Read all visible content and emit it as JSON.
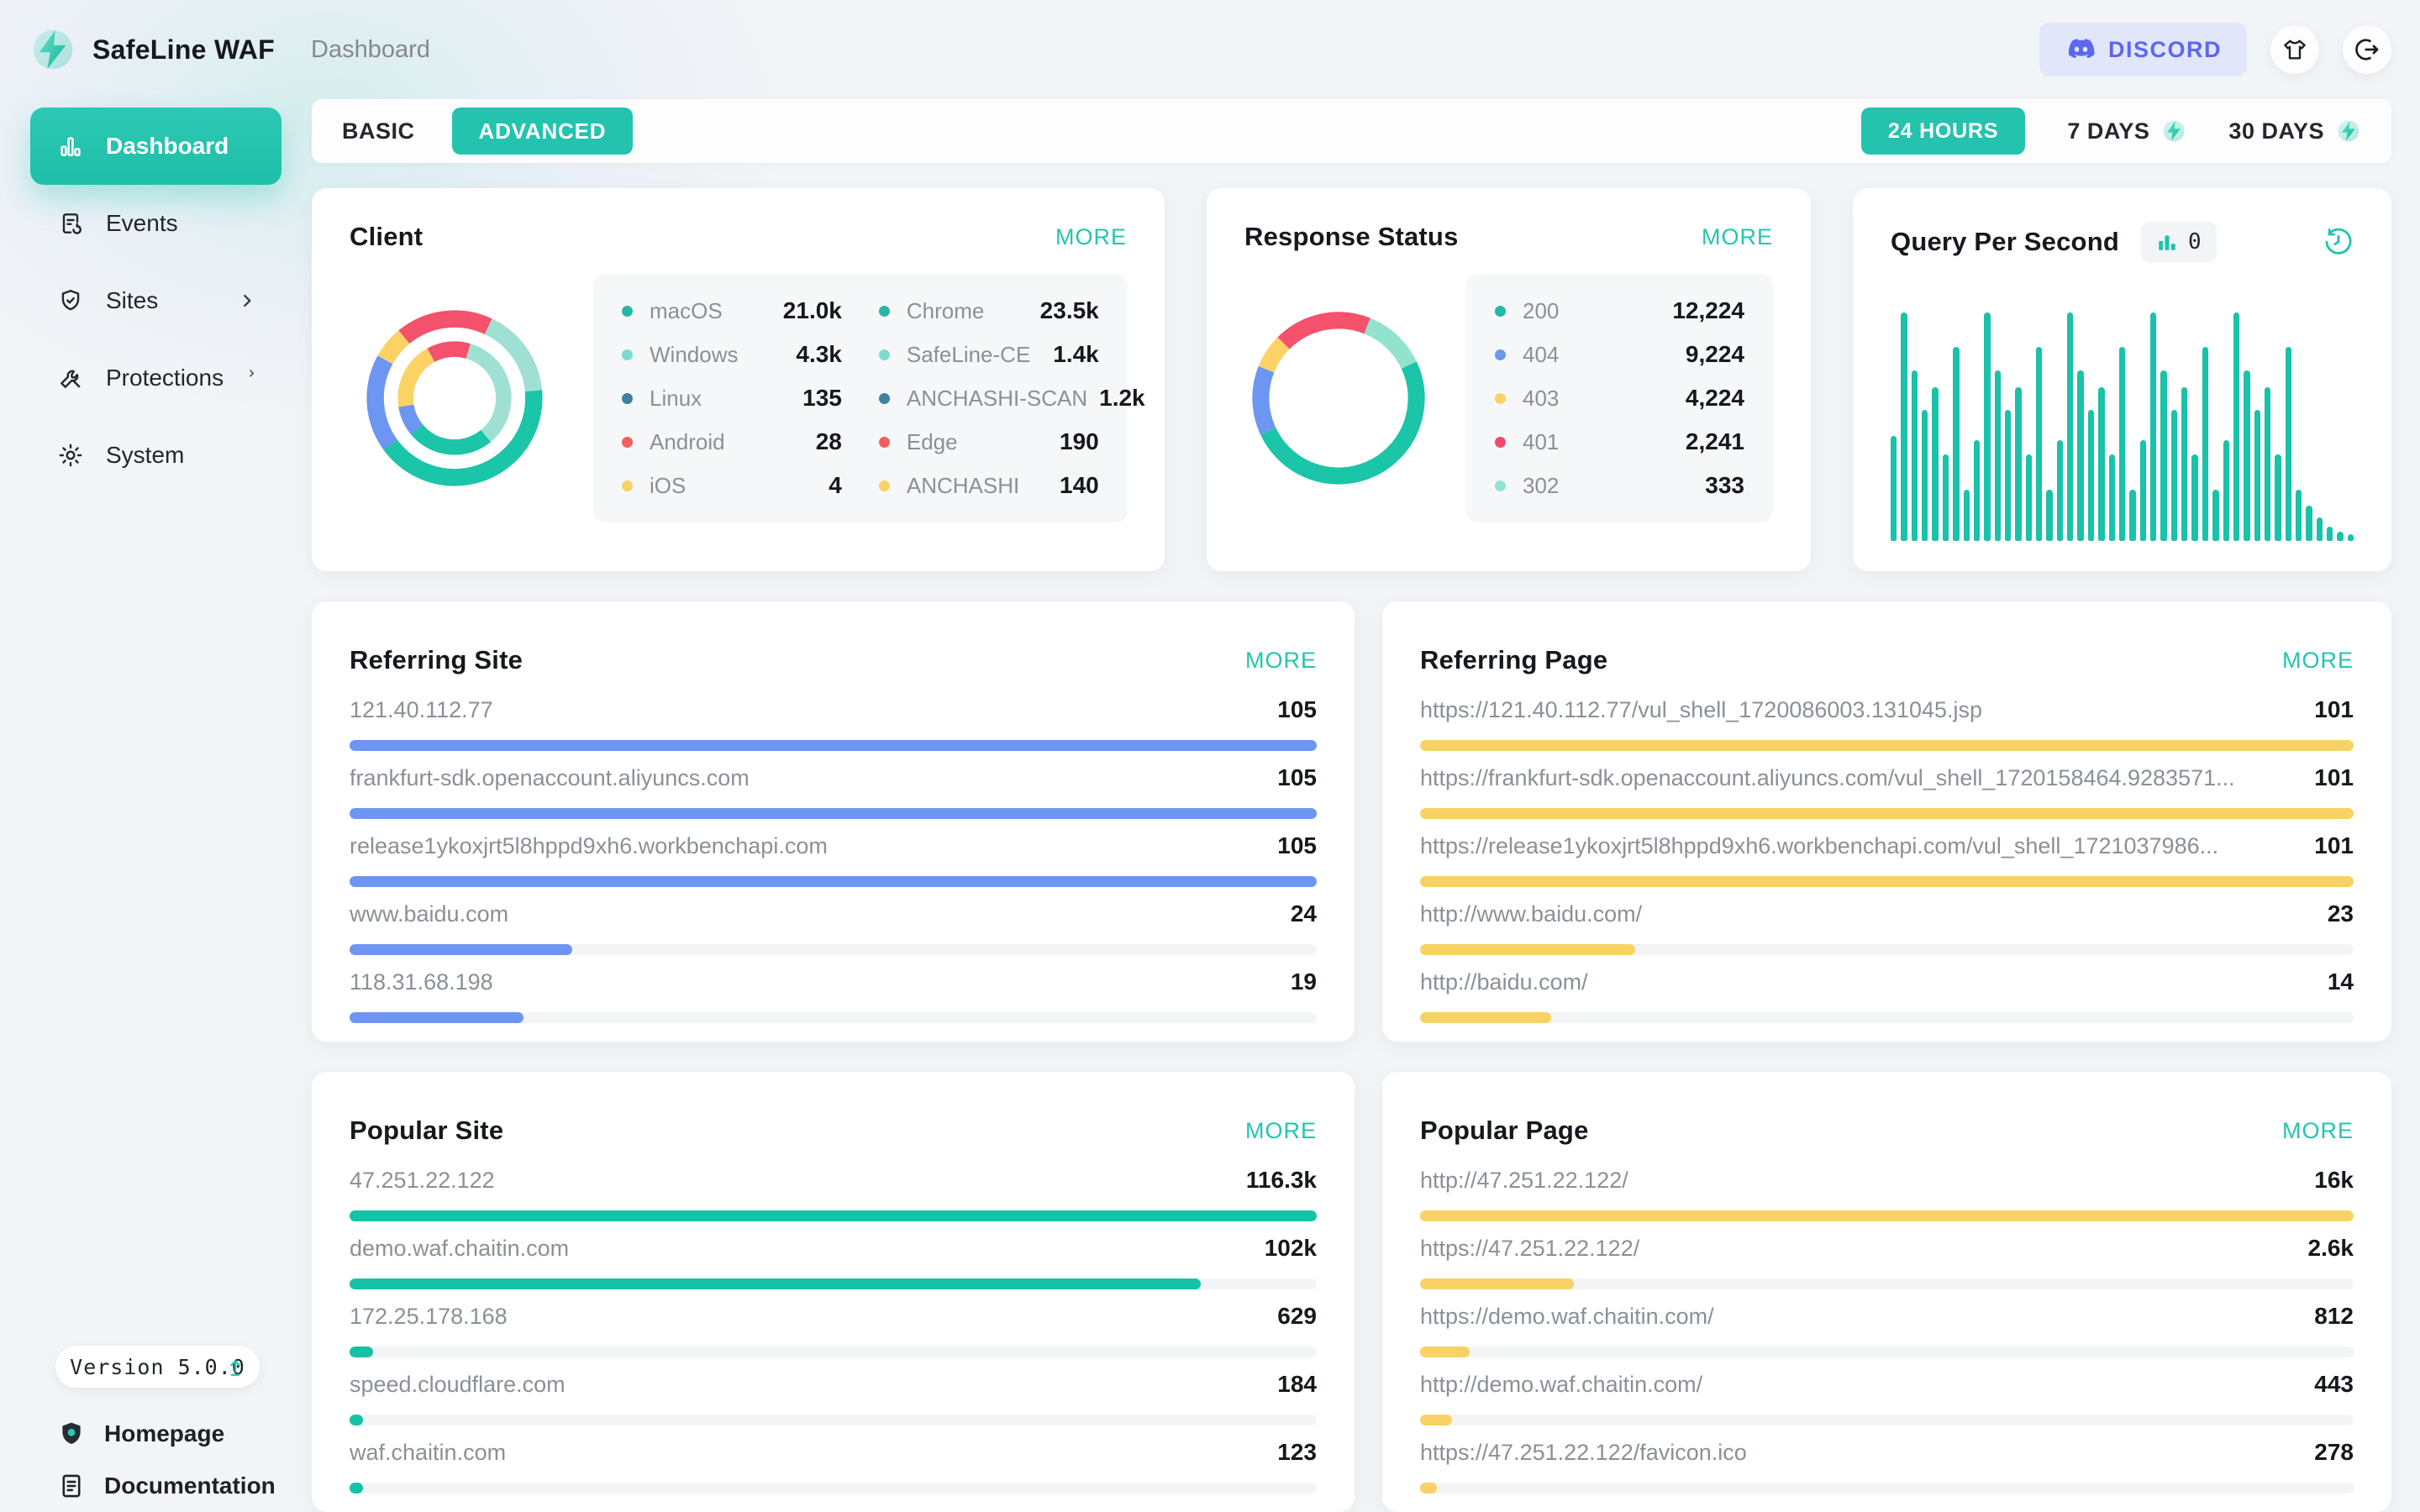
{
  "app": {
    "brand": "SafeLine WAF",
    "breadcrumb": "Dashboard"
  },
  "header": {
    "discord": "DISCORD"
  },
  "colors": {
    "accent": "#23c3ae",
    "discord": "#5b67f1",
    "bar_blue": "#6d95f2",
    "bar_yellow": "#f8d264",
    "bar_teal": "#14c3a5",
    "qps_teal": "#19c2a8"
  },
  "sidebar": {
    "items": [
      {
        "label": "Dashboard",
        "active": true
      },
      {
        "label": "Events",
        "active": false
      },
      {
        "label": "Sites",
        "active": false,
        "expandable": true
      },
      {
        "label": "Protections",
        "active": false,
        "expandable": true
      },
      {
        "label": "System",
        "active": false
      }
    ],
    "version": "Version 5.0.0",
    "homepage": "Homepage",
    "documentation": "Documentation"
  },
  "toolbar": {
    "basic": "BASIC",
    "advanced": "ADVANCED",
    "ranges": [
      {
        "label": "24 HOURS",
        "active": true,
        "pro": false
      },
      {
        "label": "7 DAYS",
        "active": false,
        "pro": true
      },
      {
        "label": "30 DAYS",
        "active": false,
        "pro": true
      }
    ]
  },
  "cards": {
    "client": {
      "title": "Client",
      "more": "MORE",
      "legend_left": [
        {
          "name": "macOS",
          "value": "21.0k",
          "color": "#2ab4a8"
        },
        {
          "name": "Windows",
          "value": "4.3k",
          "color": "#7bdccb"
        },
        {
          "name": "Linux",
          "value": "135",
          "color": "#3f81a1"
        },
        {
          "name": "Android",
          "value": "28",
          "color": "#f2605e"
        },
        {
          "name": "iOS",
          "value": "4",
          "color": "#f8d264"
        }
      ],
      "legend_right": [
        {
          "name": "Chrome",
          "value": "23.5k",
          "color": "#2ab4a8"
        },
        {
          "name": "SafeLine-CE",
          "value": "1.4k",
          "color": "#7bdccb"
        },
        {
          "name": "ANCHASHI-SCAN",
          "value": "1.2k",
          "color": "#3f81a1"
        },
        {
          "name": "Edge",
          "value": "190",
          "color": "#f2605e"
        },
        {
          "name": "ANCHASHI",
          "value": "140",
          "color": "#f8d264"
        }
      ],
      "donut": {
        "rings": [
          {
            "r": 97,
            "w": 21,
            "start": 0.89,
            "segments": [
              {
                "color": "#f4516c",
                "f": 0.18
              },
              {
                "color": "#9fe0d3",
                "f": 0.165
              },
              {
                "color": "#1bc5a8",
                "f": 0.415
              },
              {
                "color": "#6d95f2",
                "f": 0.18
              },
              {
                "color": "#fbd263",
                "f": 0.06
              }
            ]
          },
          {
            "r": 60,
            "w": 19,
            "start": 0.92,
            "segments": [
              {
                "color": "#f4516c",
                "f": 0.125
              },
              {
                "color": "#9fe0d3",
                "f": 0.345
              },
              {
                "color": "#1bc5a8",
                "f": 0.25
              },
              {
                "color": "#6d95f2",
                "f": 0.085
              },
              {
                "color": "#fbd263",
                "f": 0.195
              }
            ]
          }
        ]
      }
    },
    "response": {
      "title": "Response Status",
      "more": "MORE",
      "legend": [
        {
          "name": "200",
          "value": "12,224",
          "color": "#1fb9a9"
        },
        {
          "name": "404",
          "value": "9,224",
          "color": "#6d95f2"
        },
        {
          "name": "403",
          "value": "4,224",
          "color": "#f8d264"
        },
        {
          "name": "401",
          "value": "2,241",
          "color": "#f14b6c"
        },
        {
          "name": "302",
          "value": "333",
          "color": "#8fe5d1"
        }
      ],
      "donut": {
        "rings": [
          {
            "r": 97,
            "w": 21,
            "start": 0.875,
            "segments": [
              {
                "color": "#f4516c",
                "f": 0.185
              },
              {
                "color": "#93e2ce",
                "f": 0.12
              },
              {
                "color": "#1bc5a8",
                "f": 0.5
              },
              {
                "color": "#6d95f2",
                "f": 0.13
              },
              {
                "color": "#fbd263",
                "f": 0.065
              }
            ]
          }
        ]
      }
    },
    "qps": {
      "title": "Query Per Second",
      "counter": "0",
      "bar_color": "#19c2a8",
      "bars": [
        45,
        98,
        73,
        56,
        66,
        37,
        83,
        22,
        43,
        98,
        73,
        56,
        66,
        37,
        83,
        22,
        43,
        98,
        73,
        56,
        66,
        37,
        83,
        22,
        43,
        98,
        73,
        56,
        66,
        37,
        83,
        22,
        43,
        98,
        73,
        56,
        66,
        37,
        83,
        22,
        15,
        10,
        6,
        4,
        3
      ]
    },
    "referring_site": {
      "title": "Referring Site",
      "more": "MORE",
      "color": "#6d95f2",
      "rows": [
        {
          "label": "121.40.112.77",
          "value": "105",
          "pct": 100
        },
        {
          "label": "frankfurt-sdk.openaccount.aliyuncs.com",
          "value": "105",
          "pct": 100
        },
        {
          "label": "release1ykoxjrt5l8hppd9xh6.workbenchapi.com",
          "value": "105",
          "pct": 100
        },
        {
          "label": "www.baidu.com",
          "value": "24",
          "pct": 23
        },
        {
          "label": "118.31.68.198",
          "value": "19",
          "pct": 18
        }
      ]
    },
    "referring_page": {
      "title": "Referring Page",
      "more": "MORE",
      "color": "#f8d264",
      "rows": [
        {
          "label": "https://121.40.112.77/vul_shell_1720086003.131045.jsp",
          "value": "101",
          "pct": 100
        },
        {
          "label": "https://frankfurt-sdk.openaccount.aliyuncs.com/vul_shell_1720158464.9283571...",
          "value": "101",
          "pct": 100
        },
        {
          "label": "https://release1ykoxjrt5l8hppd9xh6.workbenchapi.com/vul_shell_1721037986...",
          "value": "101",
          "pct": 100
        },
        {
          "label": "http://www.baidu.com/",
          "value": "23",
          "pct": 23
        },
        {
          "label": "http://baidu.com/",
          "value": "14",
          "pct": 14
        }
      ]
    },
    "popular_site": {
      "title": "Popular Site",
      "more": "MORE",
      "color": "#14c3a5",
      "rows": [
        {
          "label": "47.251.22.122",
          "value": "116.3k",
          "pct": 100
        },
        {
          "label": "demo.waf.chaitin.com",
          "value": "102k",
          "pct": 88
        },
        {
          "label": "172.25.178.168",
          "value": "629",
          "pct": 2.4
        },
        {
          "label": "speed.cloudflare.com",
          "value": "184",
          "pct": 1.4
        },
        {
          "label": "waf.chaitin.com",
          "value": "123",
          "pct": 1.4
        }
      ]
    },
    "popular_page": {
      "title": "Popular Page",
      "more": "MORE",
      "color": "#f8d264",
      "rows": [
        {
          "label": "http://47.251.22.122/",
          "value": "16k",
          "pct": 100
        },
        {
          "label": "https://47.251.22.122/",
          "value": "2.6k",
          "pct": 16.5
        },
        {
          "label": "https://demo.waf.chaitin.com/",
          "value": "812",
          "pct": 5.3
        },
        {
          "label": "http://demo.waf.chaitin.com/",
          "value": "443",
          "pct": 3.4
        },
        {
          "label": "https://47.251.22.122/favicon.ico",
          "value": "278",
          "pct": 1.8
        }
      ]
    }
  }
}
